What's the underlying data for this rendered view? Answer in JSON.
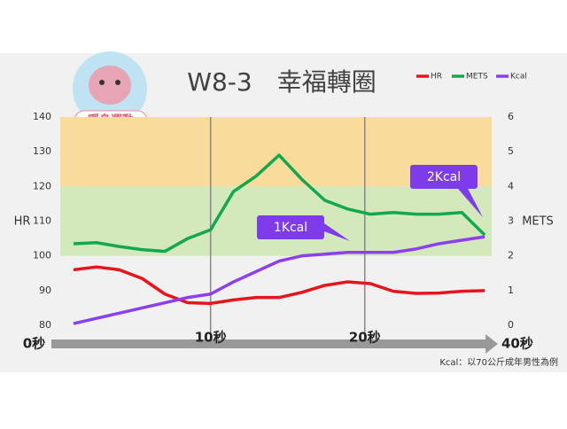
{
  "chart_data": {
    "type": "line",
    "title": "W8-3　幸福轉圈",
    "badge": "暖身運動",
    "y_label": "HR",
    "y2_label": "METS",
    "note": "Kcal：以70公斤成年男性為例",
    "annotations": [
      "1Kcal",
      "2Kcal"
    ],
    "x": [
      0,
      1,
      2,
      3,
      4,
      5,
      6,
      7,
      8,
      9,
      10,
      11,
      12,
      13,
      14,
      15,
      16,
      17,
      18
    ],
    "xlim": [
      -1,
      18.5
    ],
    "xticks": [
      {
        "value": -1,
        "label": "0秒"
      },
      {
        "value": 6,
        "label": "10秒"
      },
      {
        "value": 12.75,
        "label": "20秒"
      },
      {
        "value": 18.5,
        "label": "40秒"
      }
    ],
    "ylim": [
      80,
      140
    ],
    "yticks": [
      80,
      90,
      100,
      110,
      120,
      130,
      140
    ],
    "y2lim": [
      0,
      6
    ],
    "y2ticks": [
      0,
      1,
      2,
      3,
      4,
      5,
      6
    ],
    "bands": [
      {
        "from": 120,
        "to": 140,
        "color": "#f9dc9c"
      },
      {
        "from": 100,
        "to": 120,
        "color": "#d3e8bb"
      }
    ],
    "series": [
      {
        "name": "HR",
        "color": "#e8141b",
        "values": [
          96,
          96.8,
          96,
          93.5,
          89,
          86.5,
          86.3,
          87.3,
          88,
          88,
          89.5,
          91.5,
          92.5,
          92,
          89.8,
          89.2,
          89.3,
          89.8,
          90
        ]
      },
      {
        "name": "METS",
        "color": "#12a84e",
        "axis": "y2",
        "values": [
          2.35,
          2.38,
          2.27,
          2.18,
          2.13,
          2.5,
          2.75,
          3.85,
          4.3,
          4.9,
          4.2,
          3.6,
          3.35,
          3.2,
          3.25,
          3.2,
          3.2,
          3.25,
          2.6
        ]
      },
      {
        "name": "Kcal",
        "color": "#8a3ff0",
        "axis": "y2",
        "values": [
          0.05,
          0.2,
          0.35,
          0.5,
          0.65,
          0.8,
          0.9,
          1.25,
          1.55,
          1.85,
          2.0,
          2.05,
          2.1,
          2.1,
          2.1,
          2.2,
          2.35,
          2.45,
          2.55
        ]
      }
    ]
  }
}
